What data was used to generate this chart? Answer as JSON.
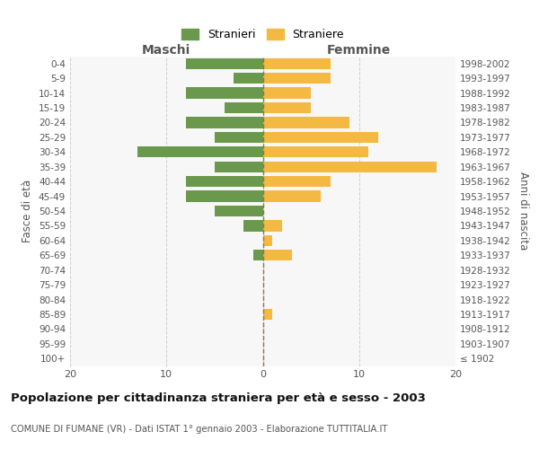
{
  "age_groups": [
    "100+",
    "95-99",
    "90-94",
    "85-89",
    "80-84",
    "75-79",
    "70-74",
    "65-69",
    "60-64",
    "55-59",
    "50-54",
    "45-49",
    "40-44",
    "35-39",
    "30-34",
    "25-29",
    "20-24",
    "15-19",
    "10-14",
    "5-9",
    "0-4"
  ],
  "birth_years": [
    "≤ 1902",
    "1903-1907",
    "1908-1912",
    "1913-1917",
    "1918-1922",
    "1923-1927",
    "1928-1932",
    "1933-1937",
    "1938-1942",
    "1943-1947",
    "1948-1952",
    "1953-1957",
    "1958-1962",
    "1963-1967",
    "1968-1972",
    "1973-1977",
    "1978-1982",
    "1983-1987",
    "1988-1992",
    "1993-1997",
    "1998-2002"
  ],
  "males": [
    0,
    0,
    0,
    0,
    0,
    0,
    0,
    1,
    0,
    2,
    5,
    8,
    8,
    5,
    13,
    5,
    8,
    4,
    8,
    3,
    8
  ],
  "females": [
    0,
    0,
    0,
    1,
    0,
    0,
    0,
    3,
    1,
    2,
    0,
    6,
    7,
    18,
    11,
    12,
    9,
    5,
    5,
    7,
    7
  ],
  "male_color": "#6a994e",
  "female_color": "#f4b942",
  "grid_color": "#cccccc",
  "centerline_color": "#8a7a3c",
  "text_color": "#555555",
  "title_color": "#111111",
  "xlim": [
    -20,
    20
  ],
  "xlabel_left": "Maschi",
  "xlabel_right": "Femmine",
  "ylabel_left": "Fasce di età",
  "ylabel_right": "Anni di nascita",
  "legend_male": "Stranieri",
  "legend_female": "Straniere",
  "title": "Popolazione per cittadinanza straniera per età e sesso - 2003",
  "subtitle": "COMUNE DI FUMANE (VR) - Dati ISTAT 1° gennaio 2003 - Elaborazione TUTTITALIA.IT",
  "xticks": [
    -20,
    -10,
    0,
    10,
    20
  ],
  "xtick_labels": [
    "20",
    "10",
    "0",
    "10",
    "20"
  ],
  "bar_height": 0.75
}
